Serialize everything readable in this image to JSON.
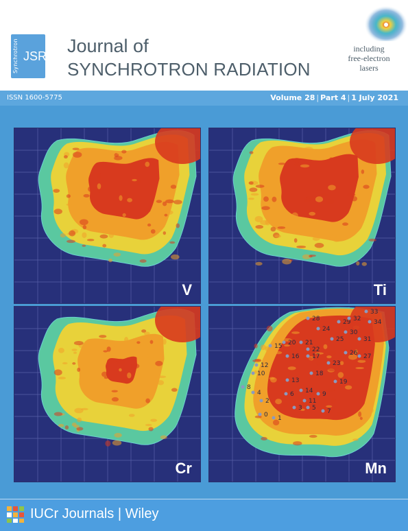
{
  "header": {
    "logo_side": "Synchrotron",
    "logo_main": "JSR",
    "title_line1": "Journal of",
    "title_line2": "SYNCHROTRON RADIATION",
    "tagline": [
      "including",
      "free-electron",
      "lasers"
    ]
  },
  "info_bar": {
    "issn": "ISSN 1600-5775",
    "volume": "Volume 28",
    "part": "Part 4",
    "date": "1 July 2021"
  },
  "panels": [
    {
      "label": "V"
    },
    {
      "label": "Ti"
    },
    {
      "label": "Cr"
    },
    {
      "label": "Mn"
    }
  ],
  "mn_numbers": [
    "0",
    "1",
    "2",
    "3",
    "4",
    "5",
    "6",
    "7",
    "8",
    "9",
    "10",
    "11",
    "12",
    "13",
    "14",
    "15",
    "16",
    "17",
    "18",
    "19",
    "20",
    "21",
    "22",
    "23",
    "24",
    "25",
    "26",
    "27",
    "28",
    "29",
    "30",
    "31",
    "32",
    "33",
    "34"
  ],
  "footer": {
    "publisher": "IUCr Journals | Wiley"
  },
  "colors": {
    "background": "#4a9bd6",
    "panel_bg": "#27307a",
    "map_hot": "#d83a1e",
    "map_mid": "#f0a02a",
    "map_warm": "#e8d23a",
    "map_cool": "#5ac8a0"
  }
}
